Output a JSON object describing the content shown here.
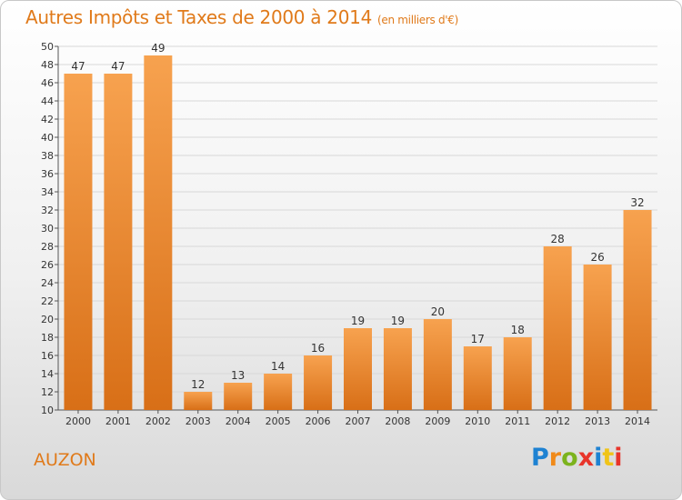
{
  "title": "Autres Impôts et Taxes de 2000 à 2014",
  "title_unit": "(en milliers d'€)",
  "city": "AUZON",
  "logo": {
    "text": "Proxiti",
    "letter_colors": [
      "#1e82d2",
      "#f08a1a",
      "#7cb31d",
      "#e8342a",
      "#1e82d2",
      "#f0c419",
      "#e8342a"
    ]
  },
  "colors": {
    "accent": "#e07a1a",
    "bar_top": "#f7a24f",
    "bar_bottom": "#d86f17",
    "grid": "#d8d8d8",
    "text": "#333333"
  },
  "chart_data": {
    "type": "bar",
    "title": "Autres Impôts et Taxes de 2000 à 2014",
    "xlabel": "",
    "ylabel": "",
    "ylim": [
      10,
      50
    ],
    "yticks": [
      10,
      12,
      14,
      16,
      18,
      20,
      22,
      24,
      26,
      28,
      30,
      32,
      34,
      36,
      38,
      40,
      42,
      44,
      46,
      48,
      50
    ],
    "grid": true,
    "categories": [
      "2000",
      "2001",
      "2002",
      "2003",
      "2004",
      "2005",
      "2006",
      "2007",
      "2008",
      "2009",
      "2010",
      "2011",
      "2012",
      "2013",
      "2014"
    ],
    "values": [
      47,
      47,
      49,
      12,
      13,
      14,
      16,
      19,
      19,
      20,
      17,
      18,
      28,
      26,
      32
    ],
    "data_labels": true
  }
}
